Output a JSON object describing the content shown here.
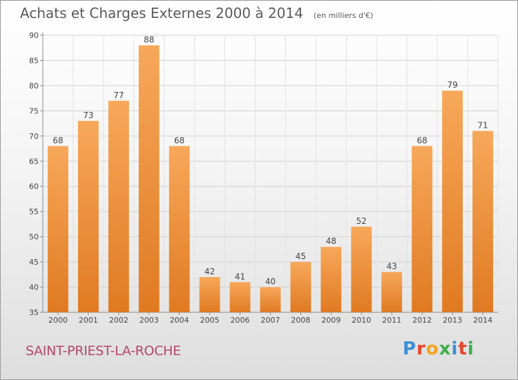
{
  "chart_data": {
    "type": "bar",
    "title": "Achats et Charges Externes 2000 à 2014",
    "subtitle": "(en milliers d'€)",
    "categories": [
      "2000",
      "2001",
      "2002",
      "2003",
      "2004",
      "2005",
      "2006",
      "2007",
      "2008",
      "2009",
      "2010",
      "2011",
      "2012",
      "2013",
      "2014"
    ],
    "values": [
      68,
      73,
      77,
      88,
      68,
      42,
      41,
      40,
      45,
      48,
      52,
      43,
      68,
      79,
      71
    ],
    "ylim": [
      35,
      90
    ],
    "yticks": [
      35,
      40,
      45,
      50,
      55,
      60,
      65,
      70,
      75,
      80,
      85,
      90
    ],
    "grid": true,
    "bar_color_light": "#f7a85a",
    "bar_color_dark": "#e07a22"
  },
  "footer": {
    "commune": "SAINT-PRIEST-LA-ROCHE"
  },
  "logo": {
    "letters": [
      "P",
      "r",
      "o",
      "x",
      "i",
      "t",
      "i"
    ],
    "colors": [
      "#3a8fd6",
      "#e8452c",
      "#f2a520",
      "#3fae49",
      "#3a8fd6",
      "#e8452c",
      "#3fae49"
    ]
  }
}
